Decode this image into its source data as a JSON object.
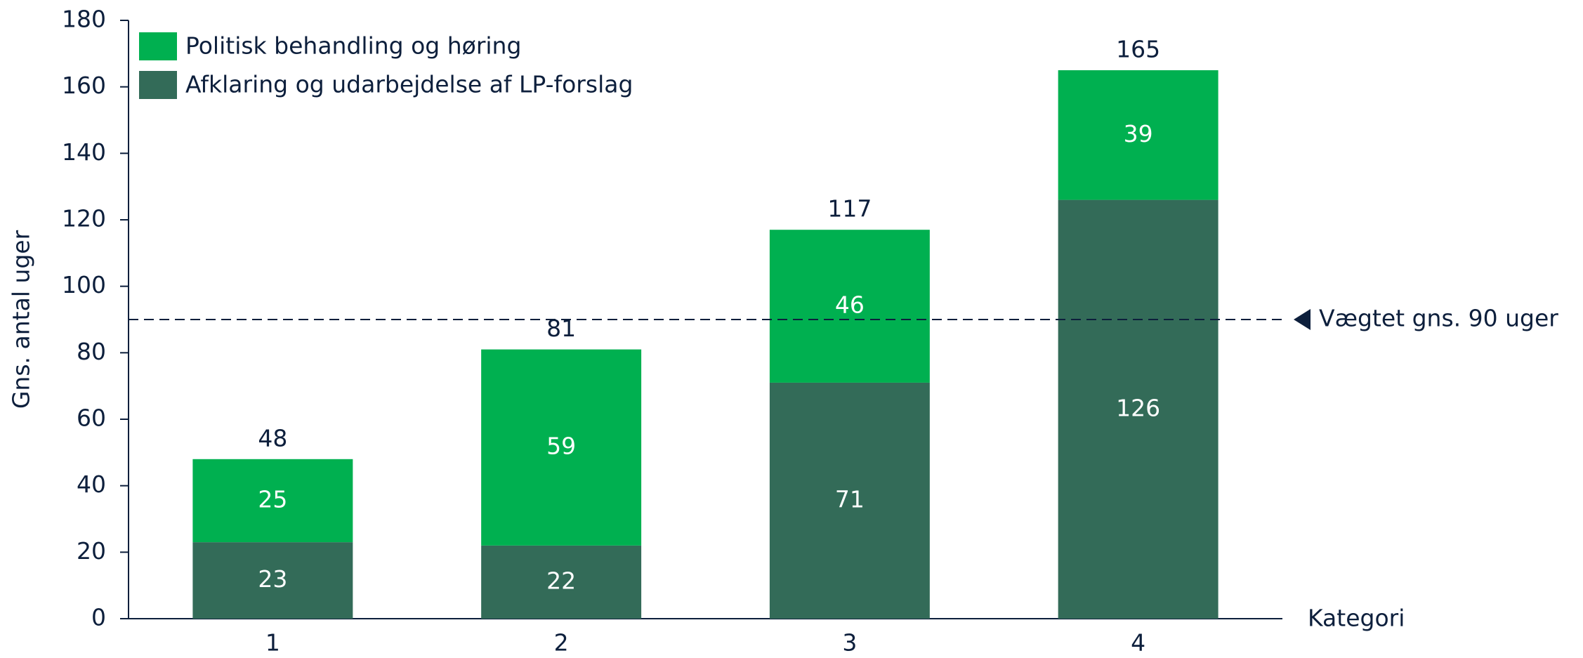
{
  "chart_data": {
    "type": "stacked_bar",
    "categories": [
      "1",
      "2",
      "3",
      "4"
    ],
    "series": [
      {
        "name": "Afklaring og udarbejdelse af LP-forslag",
        "color": "#336b58",
        "values": [
          23,
          22,
          71,
          126
        ]
      },
      {
        "name": "Politisk behandling og høring",
        "color": "#00b050",
        "values": [
          25,
          59,
          46,
          39
        ]
      }
    ],
    "totals": [
      48,
      81,
      117,
      165
    ],
    "ylabel": "Gns. antal uger",
    "xlabel": "Kategori",
    "ylim": [
      0,
      180
    ],
    "yticks": [
      0,
      20,
      40,
      60,
      80,
      100,
      120,
      140,
      160,
      180
    ],
    "reference_line": {
      "value": 90,
      "label": "Vægtet gns. 90 uger"
    },
    "legend": "upper left"
  }
}
